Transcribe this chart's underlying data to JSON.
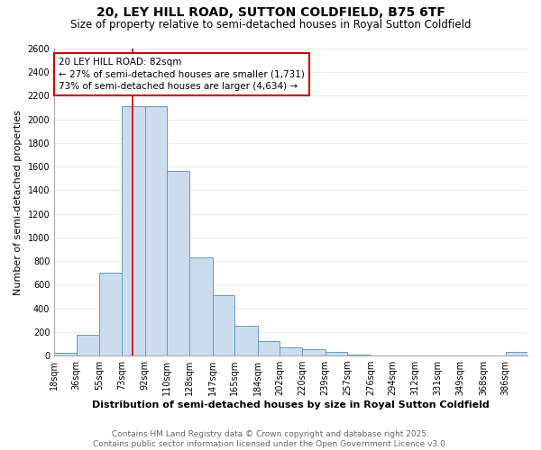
{
  "title": "20, LEY HILL ROAD, SUTTON COLDFIELD, B75 6TF",
  "subtitle": "Size of property relative to semi-detached houses in Royal Sutton Coldfield",
  "xlabel_bottom": "Distribution of semi-detached houses by size in Royal Sutton Coldfield",
  "ylabel": "Number of semi-detached properties",
  "footer_line1": "Contains HM Land Registry data © Crown copyright and database right 2025.",
  "footer_line2": "Contains public sector information licensed under the Open Government Licence v3.0.",
  "bin_labels": [
    "18sqm",
    "36sqm",
    "55sqm",
    "73sqm",
    "92sqm",
    "110sqm",
    "128sqm",
    "147sqm",
    "165sqm",
    "184sqm",
    "202sqm",
    "220sqm",
    "239sqm",
    "257sqm",
    "276sqm",
    "294sqm",
    "312sqm",
    "331sqm",
    "349sqm",
    "368sqm",
    "386sqm"
  ],
  "bin_edges": [
    18,
    36,
    55,
    73,
    92,
    110,
    128,
    147,
    165,
    184,
    202,
    220,
    239,
    257,
    276,
    294,
    312,
    331,
    349,
    368,
    386,
    404
  ],
  "counts": [
    20,
    175,
    700,
    2110,
    2110,
    1560,
    830,
    510,
    250,
    125,
    70,
    55,
    30,
    5,
    0,
    0,
    0,
    0,
    0,
    0,
    30
  ],
  "bar_color": "#ccdcec",
  "bar_edge_color": "#6699bb",
  "red_line_x": 82,
  "annotation_title": "20 LEY HILL ROAD: 82sqm",
  "annotation_smaller": "← 27% of semi-detached houses are smaller (1,731)",
  "annotation_larger": "73% of semi-detached houses are larger (4,634) →",
  "annotation_box_color": "#ffffff",
  "annotation_box_edge": "#cc0000",
  "ylim": [
    0,
    2600
  ],
  "yticks": [
    0,
    200,
    400,
    600,
    800,
    1000,
    1200,
    1400,
    1600,
    1800,
    2000,
    2200,
    2400,
    2600
  ],
  "background_color": "#ffffff",
  "grid_color": "#e8eef4",
  "title_fontsize": 10,
  "subtitle_fontsize": 8.5,
  "tick_fontsize": 7,
  "ylabel_fontsize": 8,
  "xlabel_fontsize": 8,
  "footer_fontsize": 6.5,
  "annotation_fontsize": 7.5
}
